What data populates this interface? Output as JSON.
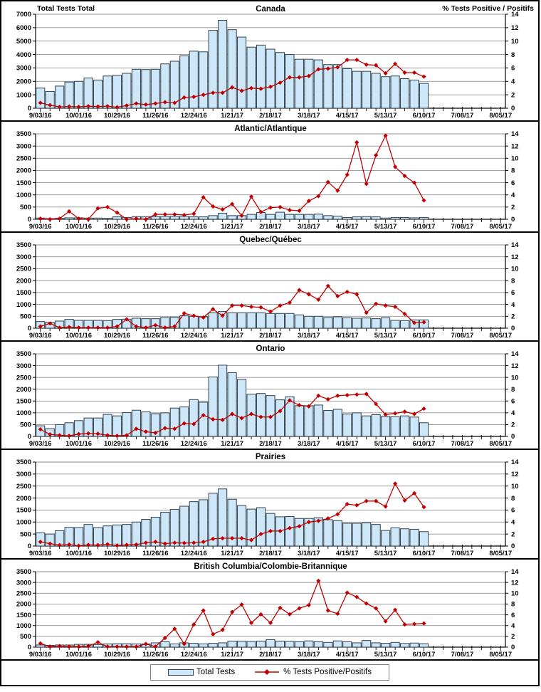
{
  "legend": {
    "total_tests": "Total Tests",
    "pct_positive": "% Tests Positive/Positifs"
  },
  "colors": {
    "bar_fill": "#cde7f8",
    "bar_stroke": "#31404c",
    "line": "#c00000",
    "grid": "#909090",
    "axis": "#000000",
    "text": "#000000"
  },
  "axis": {
    "x_tick_labels": [
      "9/03/16",
      "10/01/16",
      "10/29/16",
      "11/26/16",
      "12/24/16",
      "1/21/17",
      "2/18/17",
      "3/18/17",
      "4/15/17",
      "5/13/17",
      "6/10/17",
      "7/08/17",
      "8/05/17"
    ],
    "weeks_between_labels": 4,
    "axis_weeks": 49,
    "left_axis_title": "Total Tests Total",
    "right_axis_title": "% Tests Positive / Positifs",
    "right_axis": {
      "min": 0,
      "max": 14,
      "step": 2
    }
  },
  "chart_data": [
    {
      "type": "bar+line",
      "title": "Canada",
      "show_axis_titles": true,
      "left_axis": {
        "min": 0,
        "max": 7000,
        "step": 1000
      },
      "right_axis": {
        "min": 0,
        "max": 14,
        "step": 2
      },
      "series": [
        {
          "name": "Total Tests",
          "kind": "bar",
          "axis": "left",
          "values": [
            1500,
            1250,
            1650,
            1950,
            2000,
            2250,
            2100,
            2400,
            2450,
            2600,
            2900,
            2880,
            2900,
            3300,
            3500,
            3900,
            4250,
            4200,
            5800,
            6550,
            5850,
            5300,
            4550,
            4700,
            4400,
            4150,
            4000,
            3650,
            3650,
            3600,
            3250,
            3250,
            2950,
            2750,
            2750,
            2600,
            2350,
            2400,
            2200,
            2100,
            1850
          ]
        },
        {
          "name": "% Tests Positive/Positifs",
          "kind": "line",
          "axis": "right",
          "values": [
            0.8,
            0.45,
            0.2,
            0.25,
            0.2,
            0.3,
            0.25,
            0.3,
            0.15,
            0.4,
            0.7,
            0.55,
            0.7,
            0.9,
            0.8,
            1.6,
            1.7,
            2.0,
            2.3,
            2.3,
            3.1,
            2.6,
            3.0,
            2.9,
            3.2,
            3.8,
            4.6,
            4.6,
            4.8,
            5.8,
            5.9,
            6.1,
            7.2,
            7.2,
            6.5,
            6.4,
            5.2,
            6.6,
            5.3,
            5.3,
            4.7
          ]
        }
      ]
    },
    {
      "type": "bar+line",
      "title": "Atlantic/Atlantique",
      "show_axis_titles": false,
      "left_axis": {
        "min": 0,
        "max": 3500,
        "step": 500
      },
      "right_axis": {
        "min": 0,
        "max": 14,
        "step": 2
      },
      "series": [
        {
          "name": "Total Tests",
          "kind": "bar",
          "axis": "left",
          "values": [
            50,
            30,
            40,
            60,
            60,
            50,
            50,
            40,
            100,
            75,
            110,
            110,
            110,
            120,
            120,
            120,
            100,
            100,
            150,
            250,
            150,
            150,
            200,
            275,
            200,
            290,
            200,
            200,
            200,
            210,
            150,
            130,
            75,
            100,
            110,
            100,
            50,
            75,
            75,
            60,
            75
          ]
        },
        {
          "name": "% Tests Positive/Positifs",
          "kind": "line",
          "axis": "right",
          "values": [
            0.1,
            0.0,
            0.1,
            1.3,
            0.1,
            0.0,
            1.8,
            2.0,
            1.1,
            0.0,
            0.1,
            0.0,
            0.8,
            0.8,
            0.8,
            0.7,
            0.9,
            3.6,
            2.1,
            1.6,
            2.5,
            0.6,
            3.7,
            1.2,
            1.9,
            2.0,
            1.5,
            1.4,
            3.0,
            3.8,
            6.1,
            4.7,
            7.3,
            12.6,
            5.8,
            10.5,
            13.7,
            8.6,
            7.1,
            6.0,
            3.1
          ]
        }
      ]
    },
    {
      "type": "bar+line",
      "title": "Quebec/Québec",
      "show_axis_titles": false,
      "left_axis": {
        "min": 0,
        "max": 3500,
        "step": 500
      },
      "right_axis": {
        "min": 0,
        "max": 14,
        "step": 2
      },
      "series": [
        {
          "name": "Total Tests",
          "kind": "bar",
          "axis": "left",
          "values": [
            280,
            250,
            300,
            370,
            330,
            330,
            330,
            320,
            370,
            380,
            420,
            400,
            400,
            450,
            460,
            520,
            500,
            480,
            650,
            700,
            650,
            650,
            650,
            650,
            620,
            620,
            620,
            560,
            500,
            500,
            450,
            480,
            440,
            420,
            430,
            400,
            440,
            330,
            320,
            350,
            350
          ]
        },
        {
          "name": "% Tests Positive/Positifs",
          "kind": "line",
          "axis": "right",
          "values": [
            0.3,
            0.8,
            0.1,
            0.2,
            0.1,
            0.1,
            0.1,
            0.1,
            0.3,
            1.5,
            0.3,
            0.1,
            0.5,
            0.1,
            0.3,
            2.5,
            2.1,
            1.8,
            3.2,
            2.1,
            3.8,
            3.8,
            3.6,
            3.5,
            2.8,
            3.8,
            4.3,
            6.4,
            5.7,
            4.8,
            7.1,
            5.4,
            6.1,
            5.7,
            2.6,
            4.1,
            3.8,
            3.6,
            2.4,
            0.9,
            1.0
          ]
        }
      ]
    },
    {
      "type": "bar+line",
      "title": "Ontario",
      "show_axis_titles": false,
      "left_axis": {
        "min": 0,
        "max": 3500,
        "step": 500
      },
      "right_axis": {
        "min": 0,
        "max": 14,
        "step": 2
      },
      "series": [
        {
          "name": "Total Tests",
          "kind": "bar",
          "axis": "left",
          "values": [
            450,
            330,
            500,
            580,
            670,
            780,
            780,
            930,
            870,
            1010,
            1110,
            1040,
            960,
            1000,
            1200,
            1250,
            1560,
            1450,
            2520,
            3020,
            2700,
            2420,
            1790,
            1820,
            1730,
            1550,
            1680,
            1300,
            1300,
            1330,
            1100,
            1150,
            950,
            1000,
            870,
            920,
            850,
            830,
            870,
            820,
            580
          ]
        },
        {
          "name": "% Tests Positive/Positifs",
          "kind": "line",
          "axis": "right",
          "values": [
            1.2,
            0.35,
            0.2,
            0.1,
            0.4,
            0.5,
            0.45,
            0.2,
            0.1,
            0.2,
            1.3,
            0.8,
            0.6,
            1.4,
            1.3,
            2.2,
            2.1,
            3.6,
            2.9,
            2.8,
            3.8,
            3.1,
            3.8,
            3.3,
            3.3,
            4.3,
            6.1,
            5.3,
            5.1,
            6.9,
            6.3,
            6.9,
            7.0,
            7.1,
            7.2,
            5.5,
            3.7,
            3.9,
            4.2,
            3.8,
            4.7
          ]
        }
      ]
    },
    {
      "type": "bar+line",
      "title": "Prairies",
      "show_axis_titles": false,
      "left_axis": {
        "min": 0,
        "max": 3500,
        "step": 500
      },
      "right_axis": {
        "min": 0,
        "max": 14,
        "step": 2
      },
      "series": [
        {
          "name": "Total Tests",
          "kind": "bar",
          "axis": "left",
          "values": [
            550,
            500,
            640,
            780,
            770,
            900,
            770,
            840,
            880,
            900,
            1000,
            1110,
            1200,
            1410,
            1530,
            1660,
            1850,
            1930,
            2200,
            2380,
            1950,
            1690,
            1540,
            1600,
            1360,
            1220,
            1230,
            1150,
            1150,
            1180,
            1100,
            1060,
            950,
            950,
            970,
            900,
            650,
            760,
            720,
            700,
            600
          ]
        },
        {
          "name": "% Tests Positive/Positifs",
          "kind": "line",
          "axis": "right",
          "values": [
            0.7,
            0.4,
            0.15,
            0.25,
            0.05,
            0.2,
            0.15,
            0.3,
            0.1,
            0.2,
            0.25,
            0.55,
            0.7,
            0.4,
            0.55,
            0.5,
            0.55,
            0.7,
            1.2,
            1.3,
            1.3,
            1.3,
            1.0,
            2.0,
            2.5,
            2.5,
            3.0,
            3.3,
            4.0,
            4.2,
            4.6,
            5.3,
            7.0,
            6.8,
            7.5,
            7.5,
            6.6,
            10.4,
            7.6,
            8.8,
            6.5
          ]
        }
      ]
    },
    {
      "type": "bar+line",
      "title": "British Columbia/Colombie-Britannique",
      "show_axis_titles": false,
      "left_axis": {
        "min": 0,
        "max": 3500,
        "step": 500
      },
      "right_axis": {
        "min": 0,
        "max": 14,
        "step": 2
      },
      "series": [
        {
          "name": "Total Tests",
          "kind": "bar",
          "axis": "left",
          "values": [
            100,
            80,
            100,
            100,
            130,
            130,
            120,
            150,
            160,
            160,
            150,
            150,
            200,
            250,
            150,
            200,
            180,
            150,
            180,
            200,
            280,
            280,
            260,
            280,
            350,
            280,
            270,
            250,
            290,
            250,
            220,
            290,
            250,
            200,
            310,
            200,
            180,
            220,
            170,
            190,
            160
          ]
        },
        {
          "name": "% Tests Positive/Positifs",
          "kind": "line",
          "axis": "right",
          "values": [
            0.7,
            0.1,
            0.2,
            0.1,
            0.1,
            0.2,
            0.9,
            0.1,
            0.1,
            0.1,
            0.1,
            0.6,
            0.1,
            1.7,
            3.4,
            0.6,
            4.2,
            6.8,
            2.4,
            3.2,
            6.5,
            7.9,
            4.5,
            6.1,
            4.5,
            7.3,
            6.1,
            7.2,
            7.8,
            12.3,
            6.8,
            6.2,
            10.1,
            9.3,
            8.1,
            7.2,
            4.8,
            6.9,
            4.2,
            4.3,
            4.4
          ]
        }
      ]
    }
  ]
}
